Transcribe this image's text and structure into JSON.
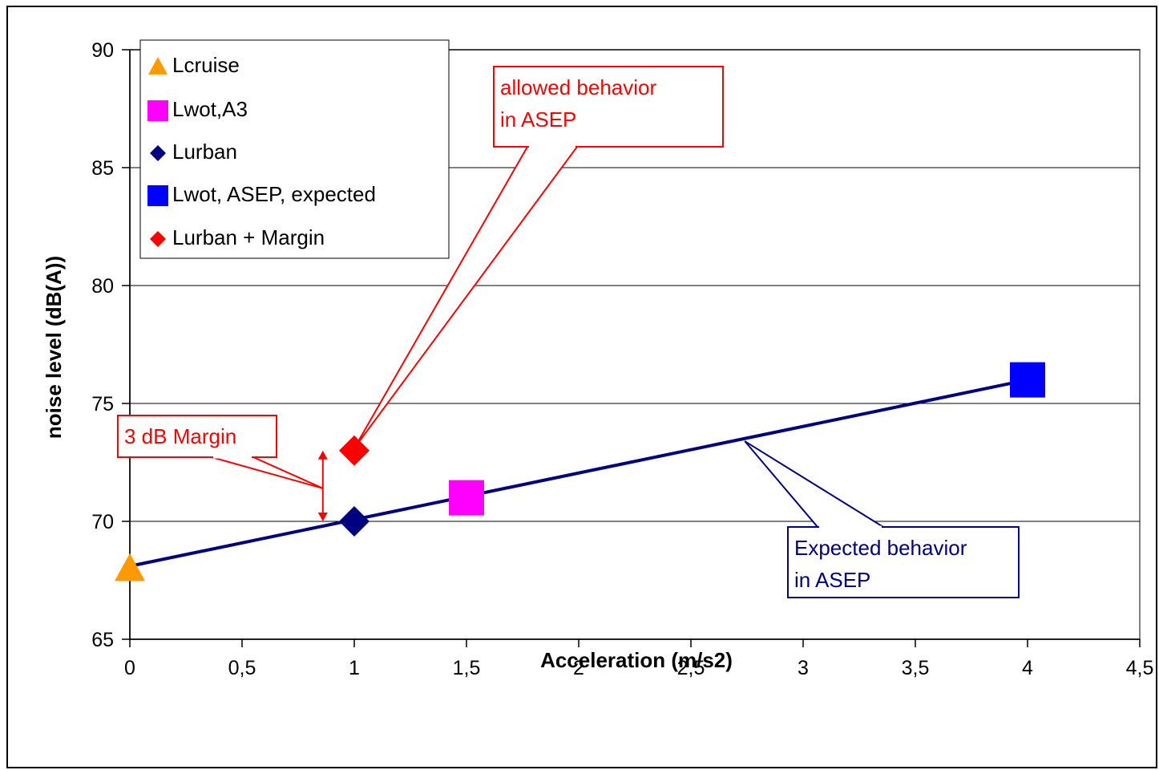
{
  "chart_data": {
    "type": "scatter",
    "title": "",
    "xlabel": "Acceleration (m/s2)",
    "ylabel": "noise level (dB(A))",
    "xlim": [
      0,
      4.5
    ],
    "ylim": [
      65,
      90
    ],
    "x_ticks": [
      "0",
      "0,5",
      "1",
      "1,5",
      "2",
      "2,5",
      "3",
      "3,5",
      "4",
      "4,5"
    ],
    "y_ticks": [
      "65",
      "70",
      "75",
      "80",
      "85",
      "90"
    ],
    "grid": "horizontal",
    "legend_position": "top-left",
    "series": [
      {
        "name": "Lcruise",
        "marker": "triangle",
        "color": "#ff9900",
        "points": [
          [
            0,
            68
          ]
        ]
      },
      {
        "name": "Lwot,A3",
        "marker": "square",
        "color": "#ff00ff",
        "points": [
          [
            1.5,
            71
          ]
        ]
      },
      {
        "name": "Lurban",
        "marker": "diamond",
        "color": "#000080",
        "points": [
          [
            1,
            70
          ]
        ]
      },
      {
        "name": "Lwot, ASEP, expected",
        "marker": "square",
        "color": "#0000ff",
        "points": [
          [
            4,
            76
          ]
        ]
      },
      {
        "name": "Lurban + Margin",
        "marker": "diamond",
        "color": "#ff0000",
        "points": [
          [
            1,
            73
          ]
        ]
      }
    ],
    "trend_line": {
      "color": "#000080",
      "points": [
        [
          0,
          68.1
        ],
        [
          4,
          76
        ]
      ]
    },
    "margin_arrow": {
      "x": 0.86,
      "y_from": 70,
      "y_to": 73,
      "color": "#ff0000"
    },
    "annotations": [
      {
        "id": "margin",
        "lines": [
          "3 dB Margin"
        ],
        "color": "#ff0000",
        "target": [
          0.86,
          71.4
        ]
      },
      {
        "id": "allowed",
        "lines": [
          "allowed behavior",
          "in ASEP"
        ],
        "color": "#ff0000",
        "target": [
          1,
          73.1
        ]
      },
      {
        "id": "expected",
        "lines": [
          "Expected behavior",
          "in ASEP"
        ],
        "color": "#000080",
        "target": [
          2.74,
          73.4
        ]
      }
    ]
  }
}
